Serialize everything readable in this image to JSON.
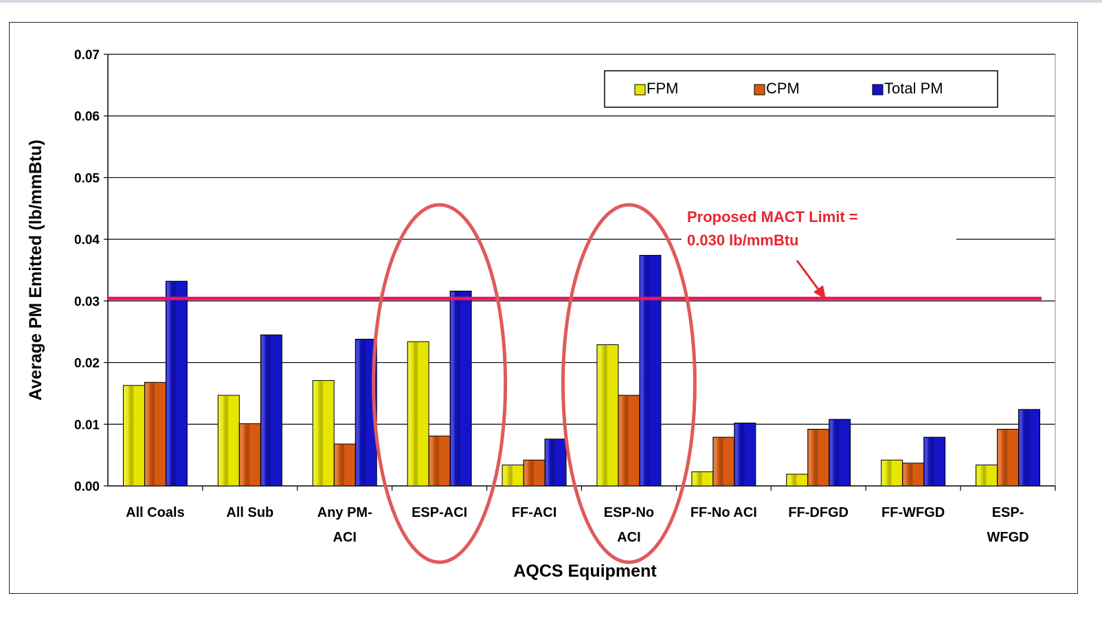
{
  "chart_data": {
    "type": "bar",
    "ylabel": "Average PM Emitted (lb/mmBtu)",
    "xlabel": "AQCS Equipment",
    "ylim": [
      0,
      0.07
    ],
    "yticks": [
      "0.00",
      "0.01",
      "0.02",
      "0.03",
      "0.04",
      "0.05",
      "0.06",
      "0.07"
    ],
    "grid": true,
    "legend_position": "top-right",
    "categories": [
      [
        "All Coals"
      ],
      [
        "All Sub"
      ],
      [
        "Any PM-",
        "ACI"
      ],
      [
        "ESP-ACI"
      ],
      [
        "FF-ACI"
      ],
      [
        "ESP-No",
        "ACI"
      ],
      [
        "FF-No ACI"
      ],
      [
        "FF-DFGD"
      ],
      [
        "FF-WFGD"
      ],
      [
        "ESP-",
        "WFGD"
      ]
    ],
    "series": [
      {
        "name": "FPM",
        "color": "#e6e600",
        "values": [
          0.0163,
          0.0147,
          0.0171,
          0.0234,
          0.0034,
          0.0229,
          0.0023,
          0.0019,
          0.0042,
          0.0034
        ]
      },
      {
        "name": "CPM",
        "color": "#d85a10",
        "values": [
          0.0168,
          0.0101,
          0.0068,
          0.0081,
          0.0042,
          0.0147,
          0.0079,
          0.0092,
          0.0037,
          0.0092
        ]
      },
      {
        "name": "Total PM",
        "color": "#1414c8",
        "values": [
          0.0332,
          0.0245,
          0.0238,
          0.0316,
          0.0076,
          0.0374,
          0.0102,
          0.0108,
          0.0079,
          0.0124
        ]
      }
    ],
    "reference_line": {
      "value": 0.0304,
      "color": "#f0145a"
    },
    "annotation": {
      "lines": [
        "Proposed MACT Limit =",
        "0.030 lb/mmBtu"
      ],
      "color": "#e8262e"
    },
    "highlighted_categories": [
      3,
      5
    ],
    "highlight_color": "#e05a5a"
  }
}
